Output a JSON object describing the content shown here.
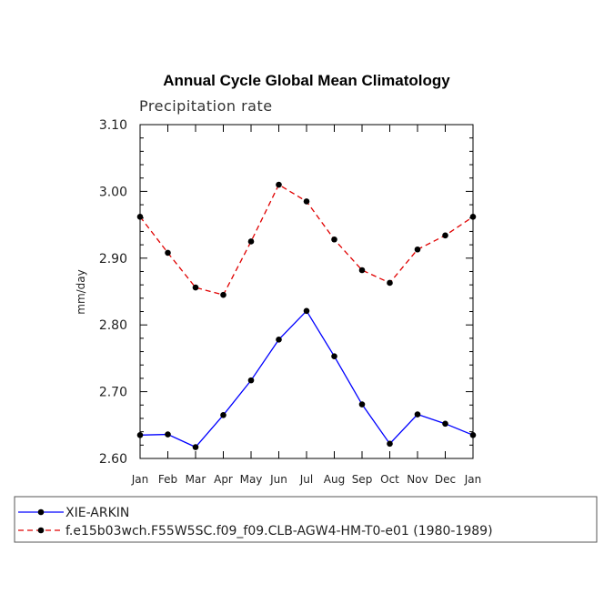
{
  "chart_data": {
    "type": "line",
    "title": "Annual Cycle Global Mean Climatology",
    "subtitle": "Precipitation rate",
    "xlabel": "",
    "ylabel": "mm/day",
    "ylim": [
      2.6,
      3.1
    ],
    "yticks": [
      "2.60",
      "2.70",
      "2.80",
      "2.90",
      "3.00",
      "3.10"
    ],
    "categories": [
      "Jan",
      "Feb",
      "Mar",
      "Apr",
      "May",
      "Jun",
      "Jul",
      "Aug",
      "Sep",
      "Oct",
      "Nov",
      "Dec",
      "Jan"
    ],
    "series": [
      {
        "name": "XIE-ARKIN",
        "color": "#0000ff",
        "dash": "solid",
        "values": [
          2.635,
          2.636,
          2.617,
          2.665,
          2.717,
          2.778,
          2.821,
          2.753,
          2.681,
          2.622,
          2.666,
          2.652,
          2.635
        ]
      },
      {
        "name": "f.e15b03wch.F55W5SC.f09_f09.CLB-AGW4-HM-T0-e01 (1980-1989)",
        "color": "#e00000",
        "dash": "dashed",
        "values": [
          2.962,
          2.908,
          2.856,
          2.845,
          2.925,
          3.01,
          2.985,
          2.928,
          2.882,
          2.863,
          2.913,
          2.934,
          2.962
        ]
      }
    ],
    "legend": "bottom-left"
  }
}
